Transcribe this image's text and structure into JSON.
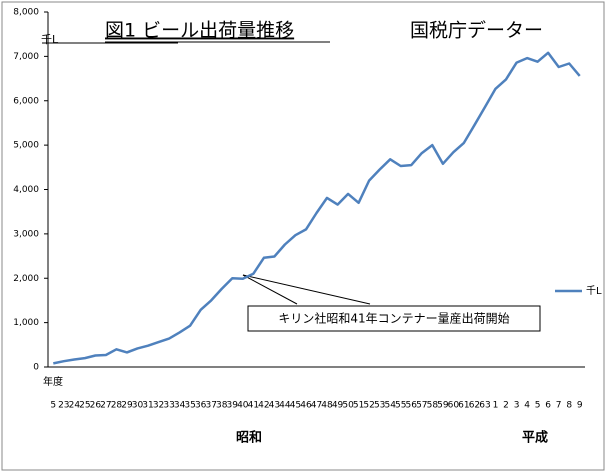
{
  "chart_data": {
    "type": "line",
    "title": "図1 ビール出荷量推移",
    "subtitle": "国税庁データー",
    "y_unit": "千L",
    "x_label": "年度",
    "eras": [
      "昭和",
      "平成"
    ],
    "annotation": "キリン社昭和41年コンテナー量産出荷開始",
    "categories": [
      "5",
      "23",
      "24",
      "25",
      "26",
      "27",
      "28",
      "29",
      "30",
      "31",
      "32",
      "33",
      "34",
      "35",
      "36",
      "37",
      "38",
      "39",
      "40",
      "41",
      "42",
      "43",
      "44",
      "45",
      "46",
      "47",
      "48",
      "49",
      "50",
      "51",
      "52",
      "53",
      "54",
      "55",
      "56",
      "57",
      "58",
      "59",
      "60",
      "61",
      "62",
      "63",
      "1",
      "2",
      "3",
      "4",
      "5",
      "6",
      "7",
      "8",
      "9"
    ],
    "series": [
      {
        "name": "千L",
        "color": "#4f81bd",
        "values": [
          80,
          130,
          170,
          200,
          260,
          270,
          400,
          330,
          420,
          480,
          560,
          640,
          780,
          930,
          1290,
          1500,
          1760,
          2000,
          1990,
          2100,
          2460,
          2490,
          2760,
          2970,
          3100,
          3470,
          3810,
          3660,
          3900,
          3700,
          4200,
          4450,
          4680,
          4530,
          4550,
          4820,
          5000,
          4580,
          4840,
          5050,
          5450,
          5860,
          6270,
          6480,
          6860,
          6960,
          6880,
          7080,
          6760,
          6840,
          6560
        ]
      }
    ],
    "ylim": [
      0,
      8000
    ],
    "yticks": [
      0,
      {
        "value": 1000,
        "label": "1,000"
      },
      {
        "value": 2000,
        "label": "2,000"
      },
      {
        "value": 3000,
        "label": "3,000"
      },
      {
        "value": 4000,
        "label": "4,000"
      },
      {
        "value": 5000,
        "label": "5,000"
      },
      {
        "value": 6000,
        "label": "6,000"
      },
      {
        "value": 7000,
        "label": "7,000"
      },
      {
        "value": 8000,
        "label": "8,000"
      }
    ],
    "grid": false,
    "legend": "right"
  }
}
